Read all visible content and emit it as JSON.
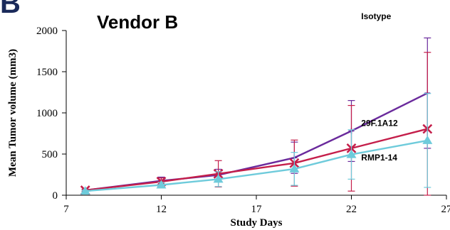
{
  "chart_data": {
    "type": "line",
    "panel_letter": "B",
    "title": "Vendor B",
    "xlabel": "Study Days",
    "ylabel": "Mean Tumor volume (mm3)",
    "xlim": [
      7,
      27
    ],
    "ylim": [
      0,
      2000
    ],
    "xticks": [
      7,
      12,
      17,
      22,
      27
    ],
    "yticks": [
      0,
      500,
      1000,
      1500,
      2000
    ],
    "grid": false,
    "series": [
      {
        "name": "Isotype",
        "color": "#6a2a9c",
        "marker": "plus",
        "x": [
          8,
          12,
          15,
          19,
          22,
          26
        ],
        "y": [
          60,
          175,
          245,
          455,
          780,
          1240
        ],
        "err": [
          12,
          45,
          70,
          190,
          370,
          670
        ]
      },
      {
        "name": "29F.1A12",
        "color": "#c41e4a",
        "marker": "x",
        "x": [
          8,
          12,
          15,
          19,
          22,
          26
        ],
        "y": [
          60,
          165,
          260,
          390,
          570,
          805
        ],
        "err": [
          12,
          45,
          160,
          280,
          520,
          930
        ]
      },
      {
        "name": "RMP1-14",
        "color": "#6ecbdb",
        "marker": "triangle",
        "x": [
          8,
          12,
          15,
          19,
          22,
          26
        ],
        "y": [
          50,
          125,
          195,
          320,
          495,
          665
        ],
        "err": [
          10,
          30,
          90,
          200,
          300,
          570
        ]
      }
    ]
  }
}
